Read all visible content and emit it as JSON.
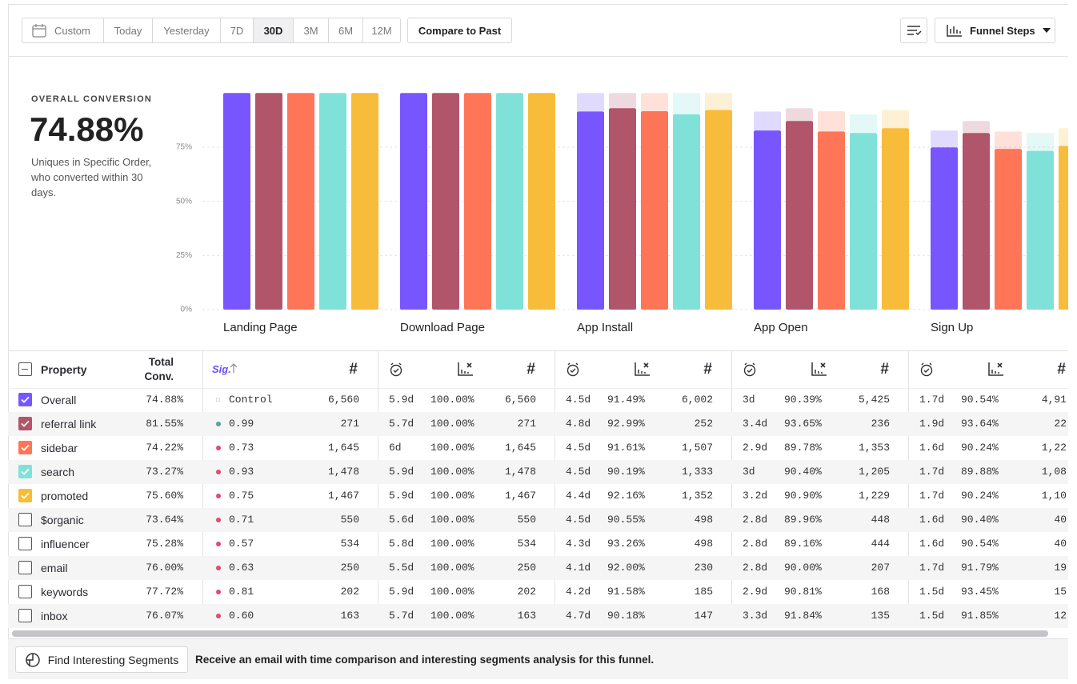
{
  "toolbar": {
    "date_options": [
      "Custom",
      "Today",
      "Yesterday",
      "7D",
      "30D",
      "3M",
      "6M",
      "12M"
    ],
    "selected": 4,
    "compare": "Compare to Past",
    "view": "Funnel Steps"
  },
  "summary": {
    "label": "OVERALL CONVERSION",
    "value": "74.88%",
    "description": "Uniques in Specific Order, who converted within 30 days."
  },
  "chart_data": {
    "type": "bar",
    "categories": [
      "Landing Page",
      "Download Page",
      "App Install",
      "App Open",
      "Sign Up"
    ],
    "series": [
      {
        "name": "Overall",
        "color": "#7856ff",
        "values": [
          100,
          100,
          91.49,
          82.7,
          74.88
        ]
      },
      {
        "name": "referral link",
        "color": "#b0556a",
        "values": [
          100,
          100,
          92.99,
          87.08,
          81.55
        ]
      },
      {
        "name": "sidebar",
        "color": "#ff7557",
        "values": [
          100,
          100,
          91.61,
          82.25,
          74.22
        ]
      },
      {
        "name": "search",
        "color": "#80e1d9",
        "values": [
          100,
          100,
          90.19,
          81.53,
          73.27
        ]
      },
      {
        "name": "promoted",
        "color": "#f8bc3b",
        "values": [
          100,
          100,
          92.16,
          83.77,
          75.6
        ]
      }
    ],
    "ylim": [
      0,
      100
    ],
    "yticks": [
      {
        "value": 0,
        "label": "0%"
      },
      {
        "value": 25,
        "label": "25%"
      },
      {
        "value": 50,
        "label": "50%"
      },
      {
        "value": 75,
        "label": "75%"
      }
    ],
    "grid": true
  },
  "table": {
    "headers": {
      "property": "Property",
      "total": "Total Conv.",
      "sig": "Sig.",
      "count": "#"
    },
    "rows": [
      {
        "name": "Overall",
        "checked": true,
        "total": "74.88%",
        "sig": "Control",
        "sig_color": "#dddddd",
        "count": "6,560",
        "steps": [
          [
            "5.9d",
            "100.00%",
            "6,560"
          ],
          [
            "4.5d",
            "91.49%",
            "6,002"
          ],
          [
            "3d",
            "90.39%",
            "5,425"
          ],
          [
            "1.7d",
            "90.54%",
            "4,91"
          ]
        ]
      },
      {
        "name": "referral link",
        "checked": true,
        "total": "81.55%",
        "sig": "0.99",
        "sig_color": "#5aa397",
        "count": "271",
        "steps": [
          [
            "5.7d",
            "100.00%",
            "271"
          ],
          [
            "4.8d",
            "92.99%",
            "252"
          ],
          [
            "3.4d",
            "93.65%",
            "236"
          ],
          [
            "1.9d",
            "93.64%",
            "22"
          ]
        ]
      },
      {
        "name": "sidebar",
        "checked": true,
        "total": "74.22%",
        "sig": "0.73",
        "sig_color": "#e34a6f",
        "count": "1,645",
        "steps": [
          [
            "6d",
            "100.00%",
            "1,645"
          ],
          [
            "4.5d",
            "91.61%",
            "1,507"
          ],
          [
            "2.9d",
            "89.78%",
            "1,353"
          ],
          [
            "1.6d",
            "90.24%",
            "1,22"
          ]
        ]
      },
      {
        "name": "search",
        "checked": true,
        "total": "73.27%",
        "sig": "0.93",
        "sig_color": "#e34a6f",
        "count": "1,478",
        "steps": [
          [
            "5.9d",
            "100.00%",
            "1,478"
          ],
          [
            "4.5d",
            "90.19%",
            "1,333"
          ],
          [
            "3d",
            "90.40%",
            "1,205"
          ],
          [
            "1.7d",
            "89.88%",
            "1,08"
          ]
        ]
      },
      {
        "name": "promoted",
        "checked": true,
        "total": "75.60%",
        "sig": "0.75",
        "sig_color": "#e34a6f",
        "count": "1,467",
        "steps": [
          [
            "5.9d",
            "100.00%",
            "1,467"
          ],
          [
            "4.4d",
            "92.16%",
            "1,352"
          ],
          [
            "3.2d",
            "90.90%",
            "1,229"
          ],
          [
            "1.7d",
            "90.24%",
            "1,10"
          ]
        ]
      },
      {
        "name": "$organic",
        "checked": false,
        "total": "73.64%",
        "sig": "0.71",
        "sig_color": "#e34a6f",
        "count": "550",
        "steps": [
          [
            "5.6d",
            "100.00%",
            "550"
          ],
          [
            "4.5d",
            "90.55%",
            "498"
          ],
          [
            "2.8d",
            "89.96%",
            "448"
          ],
          [
            "1.6d",
            "90.40%",
            "40"
          ]
        ]
      },
      {
        "name": "influencer",
        "checked": false,
        "total": "75.28%",
        "sig": "0.57",
        "sig_color": "#e34a6f",
        "count": "534",
        "steps": [
          [
            "5.8d",
            "100.00%",
            "534"
          ],
          [
            "4.3d",
            "93.26%",
            "498"
          ],
          [
            "2.8d",
            "89.16%",
            "444"
          ],
          [
            "1.6d",
            "90.54%",
            "40"
          ]
        ]
      },
      {
        "name": "email",
        "checked": false,
        "total": "76.00%",
        "sig": "0.63",
        "sig_color": "#e34a6f",
        "count": "250",
        "steps": [
          [
            "5.5d",
            "100.00%",
            "250"
          ],
          [
            "4.1d",
            "92.00%",
            "230"
          ],
          [
            "2.8d",
            "90.00%",
            "207"
          ],
          [
            "1.7d",
            "91.79%",
            "19"
          ]
        ]
      },
      {
        "name": "keywords",
        "checked": false,
        "total": "77.72%",
        "sig": "0.81",
        "sig_color": "#e34a6f",
        "count": "202",
        "steps": [
          [
            "5.9d",
            "100.00%",
            "202"
          ],
          [
            "4.2d",
            "91.58%",
            "185"
          ],
          [
            "2.9d",
            "90.81%",
            "168"
          ],
          [
            "1.5d",
            "93.45%",
            "15"
          ]
        ]
      },
      {
        "name": "inbox",
        "checked": false,
        "total": "76.07%",
        "sig": "0.60",
        "sig_color": "#e34a6f",
        "count": "163",
        "steps": [
          [
            "5.7d",
            "100.00%",
            "163"
          ],
          [
            "4.7d",
            "90.18%",
            "147"
          ],
          [
            "3.3d",
            "91.84%",
            "135"
          ],
          [
            "1.5d",
            "91.85%",
            "12"
          ]
        ]
      }
    ]
  },
  "footer": {
    "button": "Find Interesting Segments",
    "message": "Receive an email with time comparison and interesting segments analysis for this funnel."
  }
}
